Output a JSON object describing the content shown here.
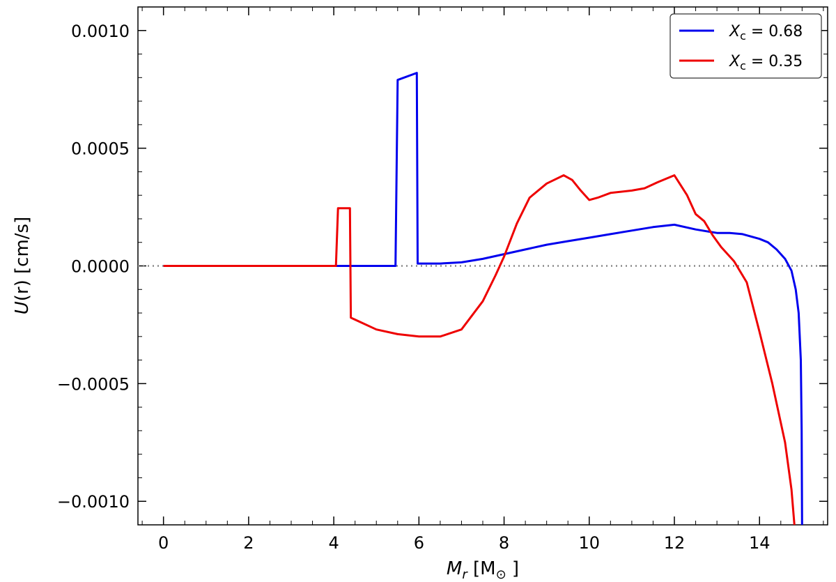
{
  "chart_data": {
    "type": "line",
    "title": "",
    "xlabel": {
      "main": "M",
      "sub": "r",
      "unit_open": " [M",
      "unit_sub": "⊙",
      "unit_close": " ]"
    },
    "ylabel": {
      "func": "U",
      "arg": "(r)",
      "unit": " [cm/s]"
    },
    "xlim": [
      -0.6,
      15.6
    ],
    "ylim": [
      -0.0011,
      0.0011
    ],
    "xticks": [
      0,
      2,
      4,
      6,
      8,
      10,
      12,
      14
    ],
    "xtick_labels": [
      "0",
      "2",
      "4",
      "6",
      "8",
      "10",
      "12",
      "14"
    ],
    "yticks": [
      0.001,
      0.0005,
      0.0,
      -0.0005,
      -0.001
    ],
    "ytick_labels": [
      "0.0010",
      "0.0005",
      "0.0000",
      "−0.0005",
      "−0.0010"
    ],
    "reference_line": {
      "y": 0,
      "style": "dotted",
      "color": "#888888"
    },
    "legend": {
      "placement": "top-right"
    },
    "colors": {
      "series1": "#0000ee",
      "series2": "#ee0000"
    },
    "series": [
      {
        "name": "X_c = 0.68",
        "legend_main": "X",
        "legend_sub": "c",
        "legend_value": " = 0.68",
        "color": "#0000ee",
        "points": [
          [
            0,
            0
          ],
          [
            5.45,
            0
          ],
          [
            5.5,
            0.00079
          ],
          [
            5.95,
            0.00082
          ],
          [
            5.97,
            1e-05
          ],
          [
            6.5,
            1e-05
          ],
          [
            7.0,
            1.5e-05
          ],
          [
            7.5,
            3e-05
          ],
          [
            8.0,
            5e-05
          ],
          [
            8.5,
            7e-05
          ],
          [
            9.0,
            9e-05
          ],
          [
            9.5,
            0.000105
          ],
          [
            10.0,
            0.00012
          ],
          [
            10.5,
            0.000135
          ],
          [
            11.0,
            0.00015
          ],
          [
            11.5,
            0.000165
          ],
          [
            12.0,
            0.000175
          ],
          [
            12.5,
            0.000155
          ],
          [
            13.0,
            0.00014
          ],
          [
            13.3,
            0.00014
          ],
          [
            13.6,
            0.000135
          ],
          [
            14.0,
            0.000115
          ],
          [
            14.2,
            0.0001
          ],
          [
            14.4,
            7e-05
          ],
          [
            14.6,
            3e-05
          ],
          [
            14.75,
            -2e-05
          ],
          [
            14.85,
            -0.0001
          ],
          [
            14.92,
            -0.0002
          ],
          [
            14.97,
            -0.0004
          ],
          [
            14.99,
            -0.0007
          ],
          [
            15.0,
            -0.0011
          ]
        ]
      },
      {
        "name": "X_c = 0.35",
        "legend_main": "X",
        "legend_sub": "c",
        "legend_value": " = 0.35",
        "color": "#ee0000",
        "points": [
          [
            0,
            0
          ],
          [
            4.05,
            0
          ],
          [
            4.1,
            0.000245
          ],
          [
            4.38,
            0.000245
          ],
          [
            4.4,
            -0.00022
          ],
          [
            5.0,
            -0.00027
          ],
          [
            5.5,
            -0.00029
          ],
          [
            6.0,
            -0.0003
          ],
          [
            6.5,
            -0.0003
          ],
          [
            7.0,
            -0.00027
          ],
          [
            7.5,
            -0.00015
          ],
          [
            7.8,
            -4e-05
          ],
          [
            8.0,
            4e-05
          ],
          [
            8.3,
            0.00018
          ],
          [
            8.6,
            0.00029
          ],
          [
            9.0,
            0.00035
          ],
          [
            9.4,
            0.000385
          ],
          [
            9.6,
            0.000365
          ],
          [
            9.8,
            0.00032
          ],
          [
            10.0,
            0.00028
          ],
          [
            10.2,
            0.00029
          ],
          [
            10.5,
            0.00031
          ],
          [
            11.0,
            0.00032
          ],
          [
            11.3,
            0.00033
          ],
          [
            11.6,
            0.000355
          ],
          [
            12.0,
            0.000385
          ],
          [
            12.3,
            0.0003
          ],
          [
            12.5,
            0.00022
          ],
          [
            12.7,
            0.00019
          ],
          [
            12.9,
            0.00013
          ],
          [
            13.1,
            8e-05
          ],
          [
            13.4,
            2e-05
          ],
          [
            13.7,
            -7e-05
          ],
          [
            14.0,
            -0.00028
          ],
          [
            14.3,
            -0.0005
          ],
          [
            14.6,
            -0.00075
          ],
          [
            14.75,
            -0.00095
          ],
          [
            14.82,
            -0.0011
          ]
        ]
      }
    ]
  }
}
